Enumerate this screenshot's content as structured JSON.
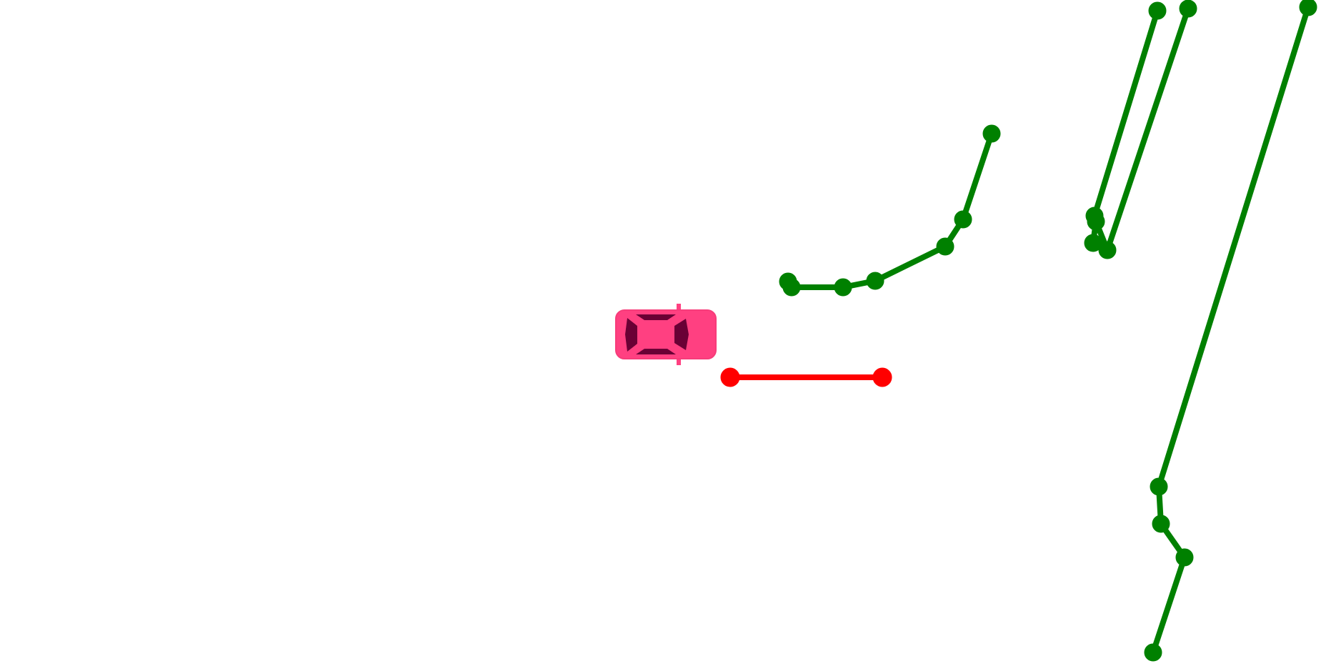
{
  "scene": {
    "background_color": "#ffffff",
    "player_car": {
      "icon": "car-icon",
      "body_color": "#ff4081",
      "window_color": "#6a0035",
      "orientation": "facing-right"
    },
    "target_segment": {
      "color": "#ff0000"
    },
    "obstacle_polylines": {
      "color": "#008000",
      "count": 5
    }
  }
}
